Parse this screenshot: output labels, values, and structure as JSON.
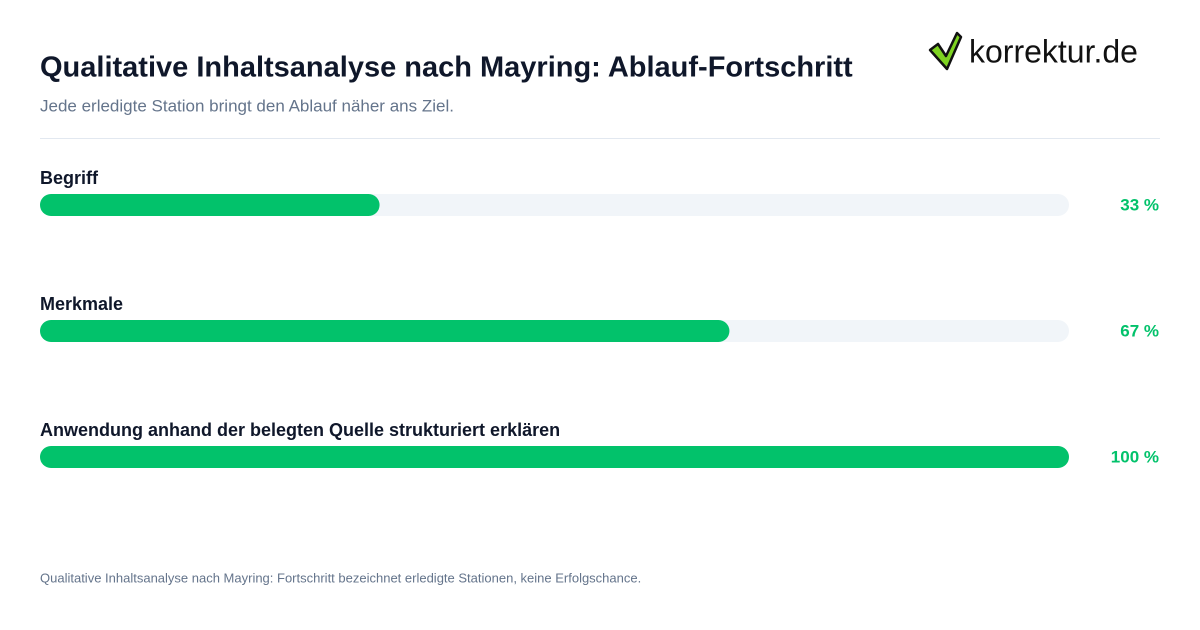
{
  "brand": "korrektur.de",
  "chart_data": {
    "type": "progress",
    "title": "Qualitative Inhaltsanalyse nach Mayring: Ablauf-Fortschritt",
    "subtitle": "Jede erledigte Station bringt den Ablauf näher ans Ziel.",
    "categories": [
      "Begriff",
      "Merkmale",
      "Anwendung anhand der belegten Quelle strukturiert erklären"
    ],
    "values": [
      33,
      67,
      100
    ],
    "value_labels": [
      "33 %",
      "67 %",
      "100 %"
    ],
    "xlim": [
      0,
      100
    ],
    "color": "#02c26b",
    "track_color": "#f1f5f9",
    "note": "Qualitative Inhaltsanalyse nach Mayring: Fortschritt bezeichnet erledigte Stationen, keine Erfolgschance."
  }
}
